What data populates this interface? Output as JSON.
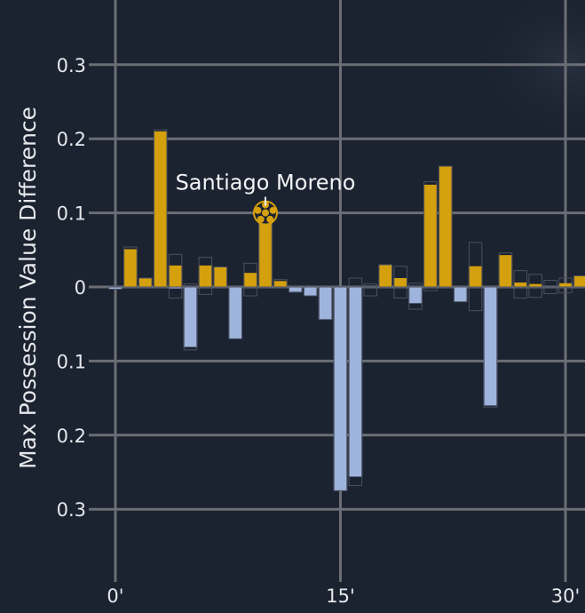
{
  "chart_data": {
    "type": "bar",
    "ylabel": "Max Possession Value Difference",
    "y_tick_labels": [
      "0.3",
      "0.2",
      "0.1",
      "0",
      "0.1",
      "0.2",
      "0.3"
    ],
    "y_tick_values": [
      0.3,
      0.2,
      0.1,
      0,
      -0.1,
      -0.2,
      -0.3
    ],
    "x_tick_labels": [
      "0'",
      "15'",
      "30'"
    ],
    "x_tick_values": [
      0,
      15,
      30
    ],
    "xlim": [
      -0.5,
      31.5
    ],
    "ylim": [
      -0.38,
      0.38
    ],
    "grid": true,
    "colors": {
      "positive": "#d4a00e",
      "negative": "#9fb4dc",
      "background": "#1b2230",
      "grid": "#6b6e74"
    },
    "annotation": {
      "label": "Santiago Moreno",
      "minute": 10,
      "value": 0.1,
      "icon": "soccer-ball-icon"
    },
    "bars": [
      {
        "minute": 0,
        "value": -0.003,
        "outline": -0.003
      },
      {
        "minute": 1,
        "value": 0.051,
        "outline": 0.054
      },
      {
        "minute": 2,
        "value": 0.012,
        "outline": 0.012
      },
      {
        "minute": 3,
        "value": 0.21,
        "outline": 0.212
      },
      {
        "minute": 4,
        "value": 0.029,
        "outline": 0.044
      },
      {
        "minute": 4,
        "value": -0.002,
        "outline": -0.015
      },
      {
        "minute": 5,
        "value": -0.081,
        "outline": -0.085
      },
      {
        "minute": 5,
        "value": 0.0,
        "outline": 0.004
      },
      {
        "minute": 6,
        "value": 0.029,
        "outline": 0.04
      },
      {
        "minute": 6,
        "value": 0.0,
        "outline": -0.01
      },
      {
        "minute": 7,
        "value": 0.027,
        "outline": 0.027
      },
      {
        "minute": 8,
        "value": -0.07,
        "outline": -0.07
      },
      {
        "minute": 9,
        "value": 0.019,
        "outline": 0.032
      },
      {
        "minute": 9,
        "value": 0.0,
        "outline": -0.012
      },
      {
        "minute": 10,
        "value": 0.093,
        "outline": 0.093
      },
      {
        "minute": 11,
        "value": 0.008,
        "outline": 0.01
      },
      {
        "minute": 12,
        "value": -0.007,
        "outline": -0.007
      },
      {
        "minute": 13,
        "value": -0.012,
        "outline": -0.012
      },
      {
        "minute": 14,
        "value": -0.044,
        "outline": -0.044
      },
      {
        "minute": 15,
        "value": -0.275,
        "outline": -0.275
      },
      {
        "minute": 16,
        "value": -0.256,
        "outline": -0.268
      },
      {
        "minute": 16,
        "value": 0.0,
        "outline": 0.012
      },
      {
        "minute": 17,
        "value": 0.0,
        "outline": -0.012
      },
      {
        "minute": 17,
        "value": 0.0,
        "outline": 0.004
      },
      {
        "minute": 18,
        "value": 0.03,
        "outline": 0.03
      },
      {
        "minute": 19,
        "value": 0.012,
        "outline": 0.028
      },
      {
        "minute": 19,
        "value": 0.0,
        "outline": -0.015
      },
      {
        "minute": 20,
        "value": -0.022,
        "outline": -0.03
      },
      {
        "minute": 20,
        "value": 0.0,
        "outline": 0.005
      },
      {
        "minute": 21,
        "value": 0.138,
        "outline": 0.142
      },
      {
        "minute": 21,
        "value": 0.0,
        "outline": -0.005
      },
      {
        "minute": 22,
        "value": 0.163,
        "outline": 0.163
      },
      {
        "minute": 23,
        "value": -0.02,
        "outline": -0.02
      },
      {
        "minute": 24,
        "value": 0.028,
        "outline": 0.06
      },
      {
        "minute": 24,
        "value": 0.0,
        "outline": -0.032
      },
      {
        "minute": 25,
        "value": -0.16,
        "outline": -0.162
      },
      {
        "minute": 26,
        "value": 0.043,
        "outline": 0.046
      },
      {
        "minute": 27,
        "value": 0.006,
        "outline": 0.022
      },
      {
        "minute": 27,
        "value": 0.0,
        "outline": -0.015
      },
      {
        "minute": 28,
        "value": 0.004,
        "outline": 0.017
      },
      {
        "minute": 28,
        "value": 0.0,
        "outline": -0.014
      },
      {
        "minute": 29,
        "value": 0.0,
        "outline": 0.009
      },
      {
        "minute": 29,
        "value": 0.0,
        "outline": -0.009
      },
      {
        "minute": 30,
        "value": 0.005,
        "outline": 0.012
      },
      {
        "minute": 30,
        "value": 0.0,
        "outline": -0.008
      },
      {
        "minute": 31,
        "value": 0.015,
        "outline": 0.015
      }
    ]
  }
}
